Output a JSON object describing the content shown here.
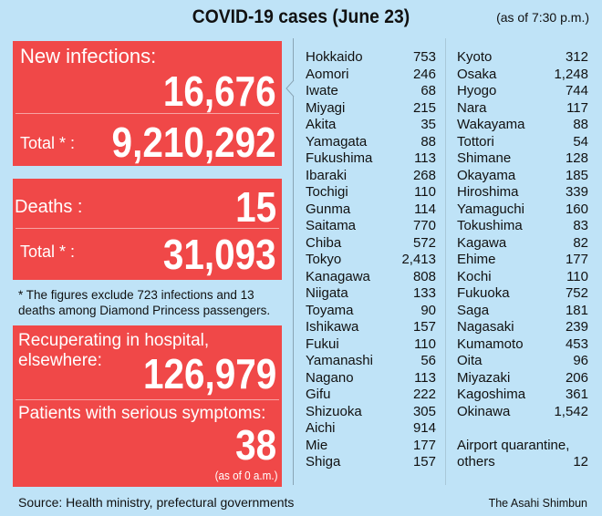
{
  "title": "COVID-19 cases (June 23)",
  "as_of": "(as of 7:30 p.m.)",
  "new_infections": {
    "label": "New infections:",
    "value": "16,676",
    "total_label": "Total * :",
    "total": "9,210,292"
  },
  "deaths": {
    "label": "Deaths :",
    "value": "15",
    "total_label": "Total * :",
    "total": "31,093"
  },
  "footnote": "* The figures exclude 723 infections and 13 deaths among Diamond Princess passengers.",
  "recuperating": {
    "label": "Recuperating in hospital, elsewhere:",
    "value": "126,979"
  },
  "serious": {
    "label": "Patients with serious symptoms:",
    "value": "38",
    "as_of": "(as of 0 a.m.)"
  },
  "prefectures_left": [
    {
      "name": "Hokkaido",
      "value": "753"
    },
    {
      "name": "Aomori",
      "value": "246"
    },
    {
      "name": "Iwate",
      "value": "68"
    },
    {
      "name": "Miyagi",
      "value": "215"
    },
    {
      "name": "Akita",
      "value": "35"
    },
    {
      "name": "Yamagata",
      "value": "88"
    },
    {
      "name": "Fukushima",
      "value": "113"
    },
    {
      "name": "Ibaraki",
      "value": "268"
    },
    {
      "name": "Tochigi",
      "value": "110"
    },
    {
      "name": "Gunma",
      "value": "114"
    },
    {
      "name": "Saitama",
      "value": "770"
    },
    {
      "name": "Chiba",
      "value": "572"
    },
    {
      "name": "Tokyo",
      "value": "2,413"
    },
    {
      "name": "Kanagawa",
      "value": "808"
    },
    {
      "name": "Niigata",
      "value": "133"
    },
    {
      "name": "Toyama",
      "value": "90"
    },
    {
      "name": "Ishikawa",
      "value": "157"
    },
    {
      "name": "Fukui",
      "value": "110"
    },
    {
      "name": "Yamanashi",
      "value": "56"
    },
    {
      "name": "Nagano",
      "value": "113"
    },
    {
      "name": "Gifu",
      "value": "222"
    },
    {
      "name": "Shizuoka",
      "value": "305"
    },
    {
      "name": "Aichi",
      "value": "914"
    },
    {
      "name": "Mie",
      "value": "177"
    },
    {
      "name": "Shiga",
      "value": "157"
    }
  ],
  "prefectures_right": [
    {
      "name": "Kyoto",
      "value": "312"
    },
    {
      "name": "Osaka",
      "value": "1,248"
    },
    {
      "name": "Hyogo",
      "value": "744"
    },
    {
      "name": "Nara",
      "value": "117"
    },
    {
      "name": "Wakayama",
      "value": "88"
    },
    {
      "name": "Tottori",
      "value": "54"
    },
    {
      "name": "Shimane",
      "value": "128"
    },
    {
      "name": "Okayama",
      "value": "185"
    },
    {
      "name": "Hiroshima",
      "value": "339"
    },
    {
      "name": "Yamaguchi",
      "value": "160"
    },
    {
      "name": "Tokushima",
      "value": "83"
    },
    {
      "name": "Kagawa",
      "value": "82"
    },
    {
      "name": "Ehime",
      "value": "177"
    },
    {
      "name": "Kochi",
      "value": "110"
    },
    {
      "name": "Fukuoka",
      "value": "752"
    },
    {
      "name": "Saga",
      "value": "181"
    },
    {
      "name": "Nagasaki",
      "value": "239"
    },
    {
      "name": "Kumamoto",
      "value": "453"
    },
    {
      "name": "Oita",
      "value": "96"
    },
    {
      "name": "Miyazaki",
      "value": "206"
    },
    {
      "name": "Kagoshima",
      "value": "361"
    },
    {
      "name": "Okinawa",
      "value": "1,542"
    }
  ],
  "airport": {
    "line1": "Airport quarantine,",
    "line2": "others",
    "value": "12"
  },
  "source": "Source: Health ministry, prefectural governments",
  "credit": "The Asahi Shimbun",
  "colors": {
    "background": "#bfe3f7",
    "panel": "#f04848"
  }
}
